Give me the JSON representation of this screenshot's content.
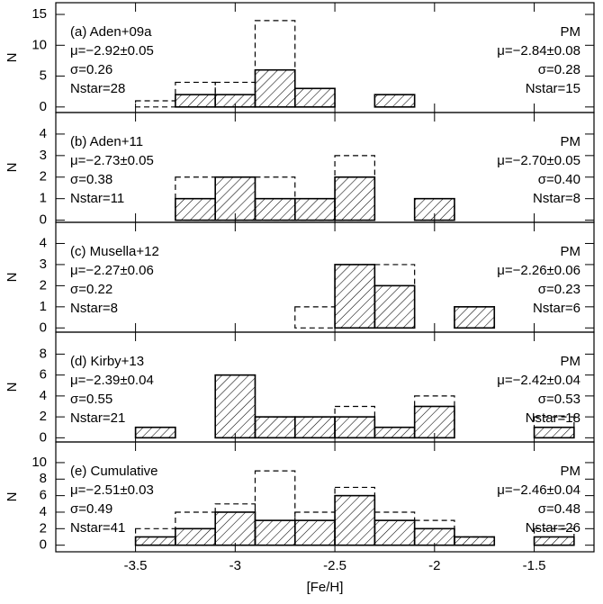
{
  "chart_data": [
    {
      "type": "histogram",
      "y_label": "N",
      "bins": [
        -3.7,
        -3.5,
        -3.3,
        -3.1,
        -2.9,
        -2.7,
        -2.5,
        -2.3,
        -2.1,
        -1.9,
        -1.7,
        -1.5,
        -1.3
      ],
      "series": [
        {
          "color": "#000000",
          "style": "dashed",
          "values": [
            0,
            1,
            4,
            4,
            14,
            3,
            0,
            2,
            0,
            0,
            0,
            0
          ]
        },
        {
          "color": "#000000",
          "style": "hatched",
          "values": [
            0,
            0,
            2,
            2,
            6,
            3,
            0,
            2,
            0,
            0,
            0,
            0
          ]
        }
      ],
      "annotations_left": [
        "(a) Aden+09a",
        "μ=−2.92±0.05",
        "σ=0.26",
        "Nstar=28"
      ],
      "annotations_right": [
        "PM",
        "μ=−2.84±0.08",
        "σ=0.28",
        "Nstar=15"
      ],
      "xlim": [
        -3.9,
        -1.2
      ],
      "xticks": [
        -3.5,
        -3.0,
        -2.5,
        -2.0,
        -1.5
      ],
      "ylim": [
        -0.9,
        16.9
      ],
      "yticks": [
        0,
        5,
        10,
        15
      ]
    },
    {
      "type": "histogram",
      "y_label": "N",
      "bins": [
        -3.7,
        -3.5,
        -3.3,
        -3.1,
        -2.9,
        -2.7,
        -2.5,
        -2.3,
        -2.1,
        -1.9,
        -1.7,
        -1.5,
        -1.3
      ],
      "series": [
        {
          "color": "#000000",
          "style": "dashed",
          "values": [
            0,
            0,
            2,
            2,
            2,
            1,
            3,
            0,
            1,
            0,
            0,
            0
          ]
        },
        {
          "color": "#000000",
          "style": "hatched",
          "values": [
            0,
            0,
            1,
            2,
            1,
            1,
            2,
            0,
            1,
            0,
            0,
            0
          ]
        }
      ],
      "annotations_left": [
        "(b) Aden+11",
        "μ=−2.73±0.05",
        "σ=0.38",
        "Nstar=11"
      ],
      "annotations_right": [
        "PM",
        "μ=−2.70±0.05",
        "σ=0.40",
        "Nstar=8"
      ],
      "xlim": [
        -3.9,
        -1.2
      ],
      "xticks": [
        -3.5,
        -3.0,
        -2.5,
        -2.0,
        -1.5
      ],
      "ylim": [
        -0.1,
        5.0
      ],
      "yticks": [
        0,
        1,
        2,
        3,
        4
      ]
    },
    {
      "type": "histogram",
      "y_label": "N",
      "bins": [
        -3.7,
        -3.5,
        -3.3,
        -3.1,
        -2.9,
        -2.7,
        -2.5,
        -2.3,
        -2.1,
        -1.9,
        -1.7,
        -1.5,
        -1.3
      ],
      "series": [
        {
          "color": "#000000",
          "style": "dashed",
          "values": [
            0,
            0,
            0,
            0,
            0,
            1,
            3,
            3,
            0,
            1,
            0,
            0
          ]
        },
        {
          "color": "#000000",
          "style": "hatched",
          "values": [
            0,
            0,
            0,
            0,
            0,
            0,
            3,
            2,
            0,
            1,
            0,
            0
          ]
        }
      ],
      "annotations_left": [
        "(c) Musella+12",
        "μ=−2.27±0.06",
        "σ=0.22",
        "Nstar=8"
      ],
      "annotations_right": [
        "PM",
        "μ=−2.26±0.06",
        "σ=0.23",
        "Nstar=6"
      ],
      "xlim": [
        -3.9,
        -1.2
      ],
      "xticks": [
        -3.5,
        -3.0,
        -2.5,
        -2.0,
        -1.5
      ],
      "ylim": [
        -0.2,
        5.0
      ],
      "yticks": [
        0,
        1,
        2,
        3,
        4
      ]
    },
    {
      "type": "histogram",
      "y_label": "N",
      "bins": [
        -3.7,
        -3.5,
        -3.3,
        -3.1,
        -2.9,
        -2.7,
        -2.5,
        -2.3,
        -2.1,
        -1.9,
        -1.7,
        -1.5,
        -1.3
      ],
      "series": [
        {
          "color": "#000000",
          "style": "dashed",
          "values": [
            0,
            1,
            0,
            6,
            2,
            2,
            3,
            1,
            4,
            0,
            0,
            2
          ]
        },
        {
          "color": "#000000",
          "style": "hatched",
          "values": [
            0,
            1,
            0,
            6,
            2,
            2,
            2,
            1,
            3,
            0,
            0,
            1
          ]
        }
      ],
      "annotations_left": [
        "(d) Kirby+13",
        "μ=−2.39±0.04",
        "σ=0.55",
        "Nstar=21"
      ],
      "annotations_right": [
        "PM",
        "μ=−2.42±0.04",
        "σ=0.53",
        "Nstar=18"
      ],
      "xlim": [
        -3.9,
        -1.2
      ],
      "xticks": [
        -3.5,
        -3.0,
        -2.5,
        -2.0,
        -1.5
      ],
      "ylim": [
        -0.4,
        10.1
      ],
      "yticks": [
        0,
        2,
        4,
        6,
        8
      ]
    },
    {
      "type": "histogram",
      "y_label": "N",
      "x_label": "[Fe/H]",
      "bins": [
        -3.7,
        -3.5,
        -3.3,
        -3.1,
        -2.9,
        -2.7,
        -2.5,
        -2.3,
        -2.1,
        -1.9,
        -1.7,
        -1.5,
        -1.3
      ],
      "series": [
        {
          "color": "#000000",
          "style": "dashed",
          "values": [
            0,
            2,
            4,
            5,
            9,
            4,
            7,
            4,
            3,
            1,
            0,
            2
          ]
        },
        {
          "color": "#000000",
          "style": "hatched",
          "values": [
            0,
            1,
            2,
            4,
            3,
            3,
            6,
            3,
            2,
            1,
            0,
            1
          ]
        }
      ],
      "annotations_left": [
        "(e) Cumulative",
        "μ=−2.51±0.03",
        "σ=0.49",
        "Nstar=41"
      ],
      "annotations_right": [
        "PM",
        "μ=−2.46±0.04",
        "σ=0.48",
        "Nstar=26"
      ],
      "xlim": [
        -3.9,
        -1.2
      ],
      "xticks": [
        -3.5,
        -3.0,
        -2.5,
        -2.0,
        -1.5
      ],
      "ylim": [
        -0.8,
        12.5
      ],
      "yticks": [
        0,
        2,
        4,
        6,
        8,
        10
      ],
      "show_xtick_labels": true
    }
  ]
}
